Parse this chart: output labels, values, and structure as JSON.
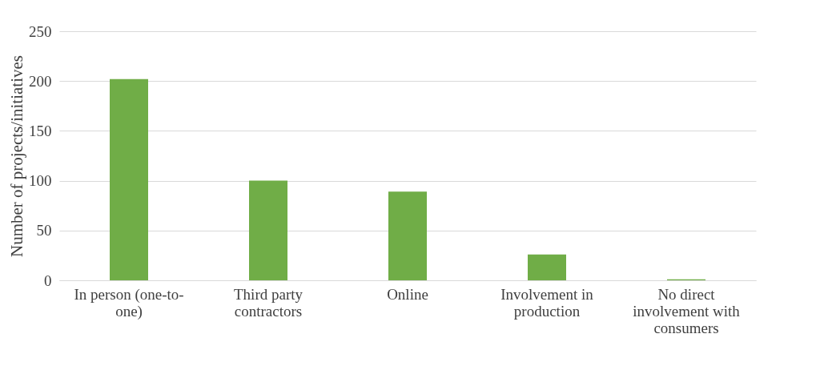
{
  "chart_data": {
    "type": "bar",
    "categories": [
      "In person (one-to-one)",
      "Third party contractors",
      "Online",
      "Involvement in production",
      "No direct involvement with consumers"
    ],
    "values": [
      202,
      100,
      89,
      26,
      1
    ],
    "color": "#70ad47",
    "ylabel": "Number of projects/initiatives",
    "ylim": [
      0,
      250
    ],
    "yticks": [
      0,
      50,
      100,
      150,
      200,
      250
    ],
    "grid": "y"
  }
}
